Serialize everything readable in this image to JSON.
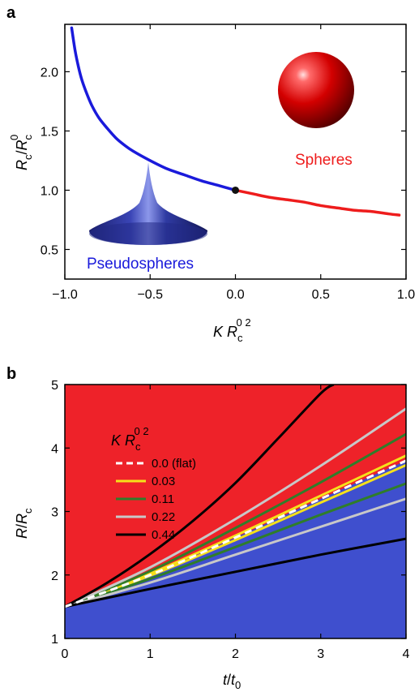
{
  "chart_data": [
    {
      "panel": "a",
      "type": "line",
      "xlim": [
        -1.0,
        1.0
      ],
      "ylim": [
        0.25,
        2.4
      ],
      "xticks": [
        "−1.0",
        "−0.5",
        "0.0",
        "0.5",
        "1.0"
      ],
      "xtick_values": [
        -1.0,
        -0.5,
        0.0,
        0.5,
        1.0
      ],
      "yticks": [
        "0.5",
        "1.0",
        "1.5",
        "2.0"
      ],
      "ytick_values": [
        0.5,
        1.0,
        1.5,
        2.0
      ],
      "xlabel": {
        "main": "K R",
        "sub": "c",
        "sup": "0 2"
      },
      "ylabel": {
        "a": "R",
        "a_sub": "c",
        "slash": "/",
        "b": "R",
        "b_sub": "c",
        "b_sup": "0"
      },
      "series": [
        {
          "name": "Pseudospheres",
          "color": "#1a1adb",
          "x": [
            -0.96,
            -0.94,
            -0.92,
            -0.9,
            -0.87,
            -0.84,
            -0.8,
            -0.75,
            -0.7,
            -0.65,
            -0.6,
            -0.5,
            -0.4,
            -0.3,
            -0.2,
            -0.1,
            0.0
          ],
          "y": [
            2.37,
            2.18,
            2.04,
            1.93,
            1.81,
            1.71,
            1.61,
            1.52,
            1.44,
            1.38,
            1.33,
            1.25,
            1.18,
            1.13,
            1.08,
            1.04,
            1.0
          ]
        },
        {
          "name": "Spheres",
          "color": "#ee1c1c",
          "x": [
            0.0,
            0.1,
            0.2,
            0.3,
            0.4,
            0.5,
            0.6,
            0.7,
            0.8,
            0.9,
            0.96
          ],
          "y": [
            1.0,
            0.97,
            0.94,
            0.92,
            0.9,
            0.87,
            0.85,
            0.83,
            0.82,
            0.8,
            0.79
          ]
        }
      ],
      "marker": {
        "x": 0.0,
        "y": 1.0
      },
      "annotations": {
        "pseudospheres": "Pseudospheres",
        "spheres": "Spheres"
      }
    },
    {
      "panel": "b",
      "type": "area",
      "xlim": [
        0,
        4
      ],
      "ylim": [
        1,
        5
      ],
      "xticks": [
        "0",
        "1",
        "2",
        "3",
        "4"
      ],
      "xtick_values": [
        0,
        1,
        2,
        3,
        4
      ],
      "yticks": [
        "1",
        "2",
        "3",
        "4",
        "5"
      ],
      "ytick_values": [
        1,
        2,
        3,
        4,
        5
      ],
      "xlabel": {
        "main": "t",
        "slash": "/",
        "b": "t",
        "b_sub": "0"
      },
      "ylabel": {
        "a": "R",
        "slash": "/",
        "b": "R",
        "b_sub": "c"
      },
      "regions": {
        "upper_color": "#ee2229",
        "lower_color": "#3f4fce"
      },
      "legend": {
        "title": {
          "main": "K R",
          "sub": "c",
          "sup": "0 2"
        },
        "position": "top-left",
        "entries": [
          {
            "label": "0.0 (flat)",
            "color": "#ffffff",
            "dashed": true
          },
          {
            "label": "0.03",
            "color": "#f5e11a",
            "dashed": false
          },
          {
            "label": "0.11",
            "color": "#2f7d2a",
            "dashed": false
          },
          {
            "label": "0.22",
            "color": "#c8c8c8",
            "dashed": false
          },
          {
            "label": "0.44",
            "color": "#000000",
            "dashed": false
          }
        ]
      },
      "series": [
        {
          "name": "0.0 (flat)",
          "color": "#ffffff",
          "dashed": true,
          "x": [
            0,
            1,
            2,
            3,
            4
          ],
          "y": [
            1.5,
            2.0,
            2.59,
            3.2,
            3.8
          ]
        },
        {
          "name": "0.03",
          "color": "#f5e11a",
          "dashed": false,
          "x": [
            0,
            1,
            2,
            3,
            4
          ],
          "y": [
            1.5,
            2.02,
            2.62,
            3.25,
            3.88
          ]
        },
        {
          "name": "0.03",
          "color": "#f5e11a",
          "dashed": false,
          "x": [
            0,
            1,
            2,
            3,
            4
          ],
          "y": [
            1.5,
            1.99,
            2.55,
            3.14,
            3.73
          ]
        },
        {
          "name": "0.11",
          "color": "#2f7d2a",
          "dashed": false,
          "x": [
            0,
            1,
            2,
            3,
            4
          ],
          "y": [
            1.5,
            2.06,
            2.74,
            3.46,
            4.22
          ]
        },
        {
          "name": "0.11",
          "color": "#2f7d2a",
          "dashed": false,
          "x": [
            0,
            1,
            2,
            3,
            4
          ],
          "y": [
            1.5,
            1.94,
            2.44,
            2.95,
            3.44
          ]
        },
        {
          "name": "0.22",
          "color": "#c8c8c8",
          "dashed": false,
          "x": [
            0,
            1,
            2,
            3,
            4
          ],
          "y": [
            1.5,
            2.12,
            2.88,
            3.72,
            4.62
          ]
        },
        {
          "name": "0.22",
          "color": "#c8c8c8",
          "dashed": false,
          "x": [
            0,
            1,
            2,
            3,
            4
          ],
          "y": [
            1.5,
            1.88,
            2.32,
            2.76,
            3.2
          ]
        },
        {
          "name": "0.44",
          "color": "#000000",
          "dashed": false,
          "x": [
            0,
            0.5,
            1,
            1.5,
            2,
            2.5,
            3,
            3.15
          ],
          "y": [
            1.5,
            1.88,
            2.33,
            2.85,
            3.45,
            4.15,
            4.86,
            5.0
          ]
        },
        {
          "name": "0.44",
          "color": "#000000",
          "dashed": false,
          "x": [
            0,
            1,
            2,
            3,
            4
          ],
          "y": [
            1.5,
            1.78,
            2.05,
            2.32,
            2.57
          ]
        }
      ]
    }
  ]
}
